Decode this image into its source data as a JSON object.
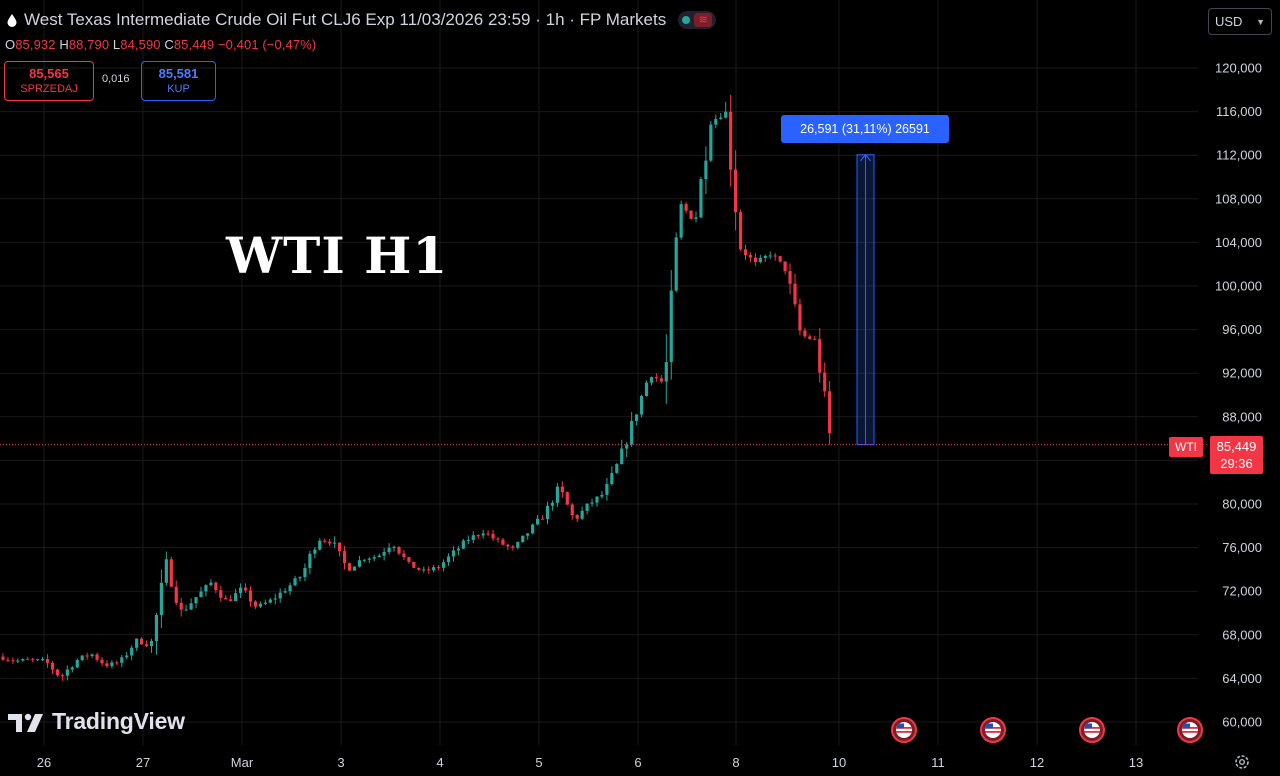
{
  "header": {
    "symbol_line": "West Texas Intermediate Crude Oil Fut CLJ6 Exp 11/03/2026 23:59 · 1h · FP Markets",
    "drop_icon": "oil-drop-icon",
    "status_icon": "market-status-icon"
  },
  "ohlc": {
    "o_label": "O",
    "o": "85,932",
    "h_label": "H",
    "h": "88,790",
    "l_label": "L",
    "l": "84,590",
    "c_label": "C",
    "c": "85,449",
    "change": "−0,401 (−0,47%)"
  },
  "trade": {
    "sell_price": "85,565",
    "sell_label": "SPRZEDAJ",
    "spread": "0,016",
    "buy_price": "85,581",
    "buy_label": "KUP"
  },
  "currency": {
    "value": "USD",
    "icon": "chevron-down-icon"
  },
  "overlay_title": "WTI H1",
  "measure": {
    "label": "26,591 (31,11%) 26591",
    "from": 85.449,
    "to": 112.04,
    "x_date": "10"
  },
  "price_tag": {
    "symbol": "WTI",
    "price": "85,449",
    "countdown": "29:36"
  },
  "watermark": {
    "text": "TradingView",
    "icon": "tradingview-logo-icon"
  },
  "settings_icon": "gear-icon",
  "event_icon": "us-flag-icon",
  "colors": {
    "up": "#26a69a",
    "down": "#f23645",
    "bg": "#000000",
    "grid": "#1a1a1a",
    "accent": "#2962ff",
    "text": "#d1d4dc"
  },
  "chart_data": {
    "type": "candlestick",
    "title": "WTI H1",
    "ylim": [
      58,
      122
    ],
    "y_ticks": [
      "120,000",
      "116,000",
      "112,000",
      "108,000",
      "104,000",
      "100,000",
      "96,000",
      "92,000",
      "88,000",
      "84,000",
      "80,000",
      "76,000",
      "72,000",
      "68,000",
      "64,000",
      "60,000"
    ],
    "x_ticks": [
      "26",
      "27",
      "Mar",
      "3",
      "4",
      "5",
      "6",
      "8",
      "10",
      "11",
      "12",
      "13"
    ],
    "events_at": [
      "10",
      "11",
      "12",
      "13"
    ],
    "last_price": 85.449,
    "path": [
      [
        "26",
        66.0
      ],
      [
        "26",
        65.6
      ],
      [
        "26",
        65.7
      ],
      [
        "27",
        65.6
      ],
      [
        "27",
        64.1
      ],
      [
        "27",
        65.6
      ],
      [
        "27",
        66.3
      ],
      [
        "27",
        65.2
      ],
      [
        "Mar",
        65.5
      ],
      [
        "Mar",
        67.5
      ],
      [
        "Mar",
        67.0
      ],
      [
        "Mar",
        74.5
      ],
      [
        "Mar",
        70.0
      ],
      [
        "Mar",
        71.5
      ],
      [
        "3",
        72.8
      ],
      [
        "3",
        71.0
      ],
      [
        "3",
        72.2
      ],
      [
        "3",
        70.5
      ],
      [
        "3",
        71.2
      ],
      [
        "3",
        72.3
      ],
      [
        "3",
        73.5
      ],
      [
        "3",
        76.8
      ],
      [
        "4",
        76.5
      ],
      [
        "4",
        74.0
      ],
      [
        "4",
        75.0
      ],
      [
        "4",
        75.2
      ],
      [
        "4",
        76.5
      ],
      [
        "4",
        74.5
      ],
      [
        "5",
        73.8
      ],
      [
        "5",
        74.2
      ],
      [
        "5",
        75.5
      ],
      [
        "5",
        76.8
      ],
      [
        "5",
        77.5
      ],
      [
        "5",
        76.5
      ],
      [
        "6",
        75.8
      ],
      [
        "6",
        77.5
      ],
      [
        "6",
        79.0
      ],
      [
        "6",
        81.5
      ],
      [
        "6",
        78.5
      ],
      [
        "6",
        80.0
      ],
      [
        "6",
        81.0
      ],
      [
        "8",
        84.0
      ],
      [
        "8",
        88.0
      ],
      [
        "8",
        92.0
      ],
      [
        "8",
        91.0
      ],
      [
        "8",
        107.5
      ],
      [
        "8",
        106.0
      ],
      [
        "8",
        115.0
      ],
      [
        "8",
        116.0
      ],
      [
        "8",
        103.5
      ],
      [
        "10",
        102.0
      ],
      [
        "10",
        103.0
      ],
      [
        "10",
        101.5
      ],
      [
        "10",
        95.5
      ],
      [
        "10",
        95.0
      ],
      [
        "10",
        85.449
      ]
    ]
  }
}
